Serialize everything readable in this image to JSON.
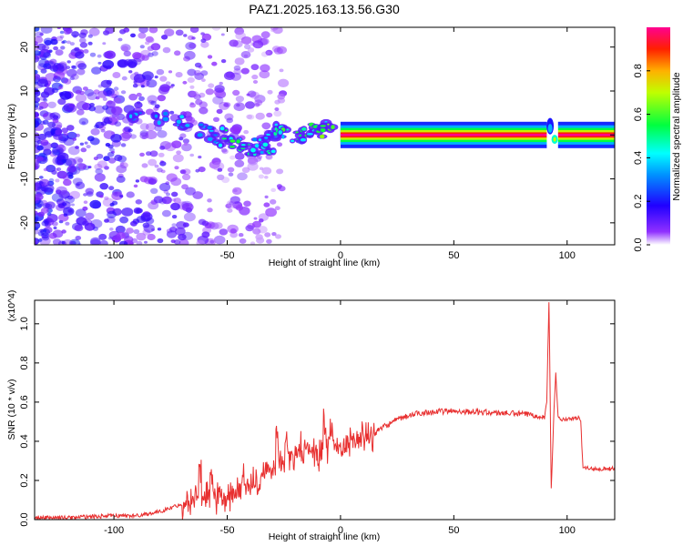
{
  "title": "PAZ1.2025.163.13.56.G30",
  "chart_data": [
    {
      "type": "heatmap",
      "title": "PAZ1.2025.163.13.56.G30",
      "xlabel": "Height of straight line (km)",
      "ylabel": "Frequency (Hz)",
      "xlim": [
        -135,
        121
      ],
      "ylim": [
        -25,
        24.5
      ],
      "xticks": [
        -100,
        -50,
        0,
        50,
        100
      ],
      "yticks": [
        -20,
        -10,
        0,
        10,
        20
      ],
      "colorbar": {
        "label": "Normalized spectral amplitude",
        "range": [
          0,
          1
        ],
        "ticks": [
          0.0,
          0.2,
          0.4,
          0.6,
          0.8
        ],
        "colormap": "rainbow",
        "colors": [
          "#ffffff",
          "#8000ff",
          "#0000ff",
          "#00ffff",
          "#00ff00",
          "#ffff00",
          "#ff8000",
          "#ff0000",
          "#ff00a0"
        ]
      },
      "ridge": {
        "x": [
          -90,
          -80,
          -70,
          -60,
          -55,
          -50,
          -45,
          -40,
          -35,
          -32,
          -30,
          -28,
          -25,
          -20,
          -15,
          -10,
          -8,
          -5,
          0,
          10,
          20,
          40,
          60,
          80,
          90,
          92,
          94,
          96,
          100,
          110,
          121
        ],
        "frequency": [
          5,
          4,
          3,
          1,
          -1,
          0,
          -2,
          -3,
          -2,
          -3,
          0,
          1,
          1,
          0,
          0,
          1,
          2,
          1,
          0,
          0,
          0,
          0,
          0,
          0,
          0,
          2,
          0,
          -1,
          0,
          0,
          0
        ],
        "amplitude": [
          0.35,
          0.35,
          0.4,
          0.35,
          0.4,
          0.5,
          0.55,
          0.5,
          0.4,
          0.45,
          0.45,
          0.5,
          0.55,
          0.55,
          0.55,
          0.6,
          0.55,
          0.6,
          1.0,
          1.0,
          1.0,
          1.0,
          1.0,
          1.0,
          0.8,
          0.3,
          0.7,
          0.6,
          1.0,
          1.0,
          1.0
        ]
      }
    },
    {
      "type": "line",
      "xlabel": "Height of straight line (km)",
      "ylabel": "SNR (10 * v/v)",
      "y_multiplier": "(x10^4)",
      "xlim": [
        -135,
        121
      ],
      "ylim": [
        0,
        1.12
      ],
      "xticks": [
        -100,
        -50,
        0,
        50,
        100
      ],
      "yticks": [
        0.0,
        0.2,
        0.4,
        0.6,
        0.8,
        1.0
      ],
      "color": "#e83030",
      "series": [
        {
          "x": [
            -135,
            -120,
            -100,
            -90,
            -80,
            -70,
            -65,
            -60,
            -55,
            -50,
            -45,
            -40,
            -35,
            -30,
            -25,
            -20,
            -15,
            -10,
            -5,
            0,
            5,
            10,
            15,
            20,
            25,
            30,
            35,
            40,
            50,
            60,
            70,
            80,
            85,
            88,
            90,
            91,
            92,
            93,
            94,
            95,
            96,
            98,
            100,
            105,
            106,
            107,
            110,
            115,
            121
          ],
          "y": [
            0.01,
            0.01,
            0.02,
            0.02,
            0.04,
            0.08,
            0.1,
            0.13,
            0.1,
            0.1,
            0.15,
            0.17,
            0.2,
            0.25,
            0.3,
            0.32,
            0.35,
            0.33,
            0.38,
            0.37,
            0.4,
            0.42,
            0.44,
            0.48,
            0.51,
            0.53,
            0.545,
            0.55,
            0.555,
            0.55,
            0.545,
            0.54,
            0.535,
            0.53,
            0.52,
            0.6,
            1.12,
            0.15,
            0.5,
            0.75,
            0.52,
            0.51,
            0.51,
            0.52,
            0.5,
            0.27,
            0.26,
            0.26,
            0.26
          ],
          "spikes": [
            {
              "x": -62,
              "y": 0.24
            },
            {
              "x": -57,
              "y": 0.19
            },
            {
              "x": -43,
              "y": 0.2
            },
            {
              "x": -33,
              "y": 0.27
            },
            {
              "x": -28,
              "y": 0.44
            },
            {
              "x": -24,
              "y": 0.42
            },
            {
              "x": -18,
              "y": 0.37
            },
            {
              "x": -13,
              "y": 0.38
            },
            {
              "x": -7,
              "y": 0.5
            },
            {
              "x": -4,
              "y": 0.48
            }
          ]
        }
      ]
    }
  ]
}
